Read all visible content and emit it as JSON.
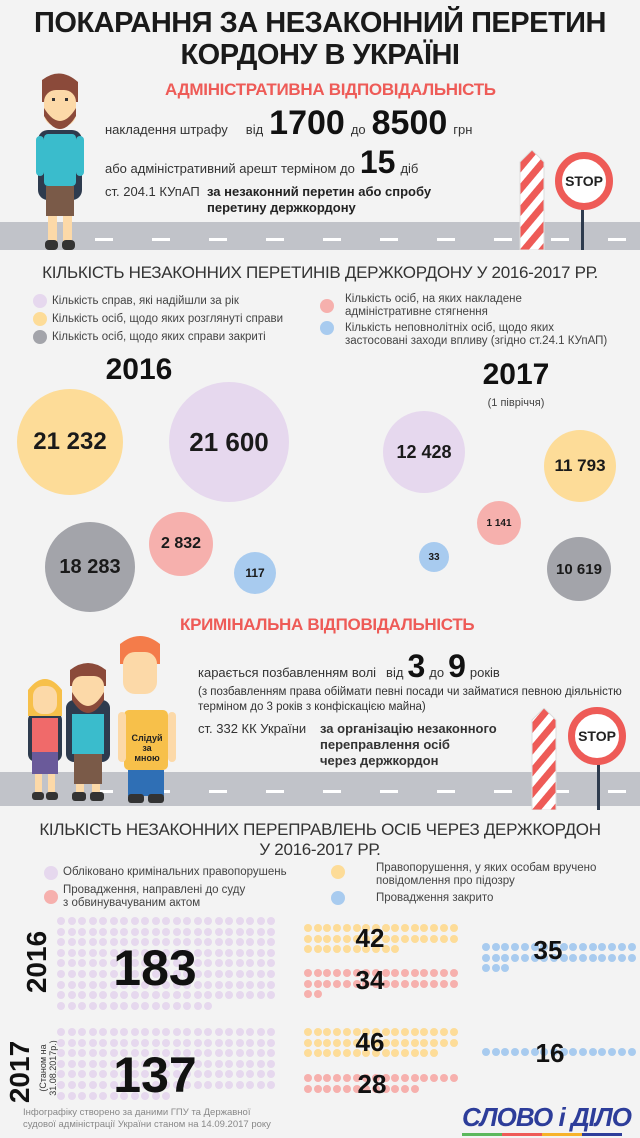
{
  "title": {
    "line1": "ПОКАРАННЯ ЗА НЕЗАКОННИЙ ПЕРЕТИН",
    "line2": "КОРДОНУ В УКРАЇНІ"
  },
  "colors": {
    "accent_red": "#ee5b57",
    "purple": "#e6d8ee",
    "yellow": "#fddc98",
    "grey": "#a3a4aa",
    "pink": "#f6b0ad",
    "blue": "#a8cbef",
    "road": "#c1c3c9",
    "logo_blue": "#2d3d9a"
  },
  "admin": {
    "heading": "АДМІНІСТРАТИВНА ВІДПОВІДАЛЬНІСТЬ",
    "fine_label": "накладення штрафу",
    "from": "від",
    "fine_min": "1700",
    "to": "до",
    "fine_max": "8500",
    "currency": "грн",
    "arrest_label": "або адміністративний арешт терміном до",
    "arrest_days": "15",
    "days_unit": "діб",
    "article": "ст. 204.1 КУпАП",
    "article_desc_1": "за незаконний перетин або спробу",
    "article_desc_2": "перетину держкордону",
    "stop_sign": "STOP"
  },
  "chart_data": [
    {
      "type": "bubble",
      "title": "КІЛЬКІСТЬ НЕЗАКОННИХ ПЕРЕТИНІВ ДЕРЖКОРДОНУ У 2016-2017 РР.",
      "legend": [
        {
          "key": "received",
          "label": "Кількість справ, які надійшли за рік",
          "color": "#e6d8ee"
        },
        {
          "key": "considered",
          "label": "Кількість осіб, щодо яких розглянуті справи",
          "color": "#fddc98"
        },
        {
          "key": "closed",
          "label": "Кількість осіб, щодо яких справи закриті",
          "color": "#a3a4aa"
        },
        {
          "key": "penalized",
          "label_1": "Кількість осіб, на яких накладене",
          "label_2": "адміністративне стягнення",
          "color": "#f6b0ad"
        },
        {
          "key": "minors",
          "label_1": "Кількість неповнолітніх осіб, щодо яких",
          "label_2": "застосовані заходи впливу (згідно ст.24.1 КУпАП)",
          "color": "#a8cbef"
        }
      ],
      "groups": [
        {
          "year": "2016",
          "note": "",
          "values": {
            "considered": "21 232",
            "received": "21 600",
            "closed": "18 283",
            "penalized": "2 832",
            "minors": "117"
          }
        },
        {
          "year": "2017",
          "note": "(1 півріччя)",
          "values": {
            "received": "12 428",
            "considered": "11 793",
            "penalized": "1 141",
            "minors": "33",
            "closed": "10 619"
          }
        }
      ]
    },
    {
      "type": "dot-matrix",
      "title_1": "КІЛЬКІСТЬ НЕЗАКОННИХ ПЕРЕПРАВЛЕНЬ ОСІБ ЧЕРЕЗ ДЕРЖКОРДОН",
      "title_2": "У 2016-2017 РР.",
      "legend": [
        {
          "key": "registered",
          "label": "Обліковано кримінальних правопорушень",
          "color": "#e6d8ee"
        },
        {
          "key": "to_court",
          "label_1": "Провадження, направлені до суду",
          "label_2": "з обвинувачуваним актом",
          "color": "#f6b0ad"
        },
        {
          "key": "suspicion",
          "label_1": "Правопорушення, у яких особам вручено",
          "label_2": "повідомлення про підозру",
          "color": "#fddc98"
        },
        {
          "key": "closed",
          "label": "Провадження закрито",
          "color": "#a8cbef"
        }
      ],
      "groups": [
        {
          "year": "2016",
          "note": "",
          "values": {
            "registered": 183,
            "suspicion": 42,
            "to_court": 34,
            "closed": 35
          }
        },
        {
          "year": "2017",
          "note_1": "(Станом на",
          "note_2": "31.08.2017р.)",
          "values": {
            "registered": 137,
            "suspicion": 46,
            "to_court": 28,
            "closed": 16
          }
        }
      ]
    }
  ],
  "criminal": {
    "heading": "КРИМІНАЛЬНА ВІДПОВІДАЛЬНІСТЬ",
    "punish_label": "карається позбавленням волі",
    "from": "від",
    "min": "3",
    "to": "до",
    "max": "9",
    "unit": "років",
    "note_1": "(з позбавленням права обіймати певні посади чи займатися певною діяльністю",
    "note_2": "терміном до 3 років з конфіскацією майна)",
    "article": "ст. 332 КК України",
    "desc_1": "за організацію незаконного",
    "desc_2": "переправлення осіб",
    "desc_3": "через держкордон",
    "shirt_text_1": "Слідуй",
    "shirt_text_2": "за",
    "shirt_text_3": "мною",
    "stop_sign": "STOP"
  },
  "footer": {
    "source_1": "Інфографіку створено за даними ГПУ та Державної",
    "source_2": "судової адміністрації України станом на 14.09.2017 року",
    "logo": "СЛОВО і ДІЛО"
  }
}
